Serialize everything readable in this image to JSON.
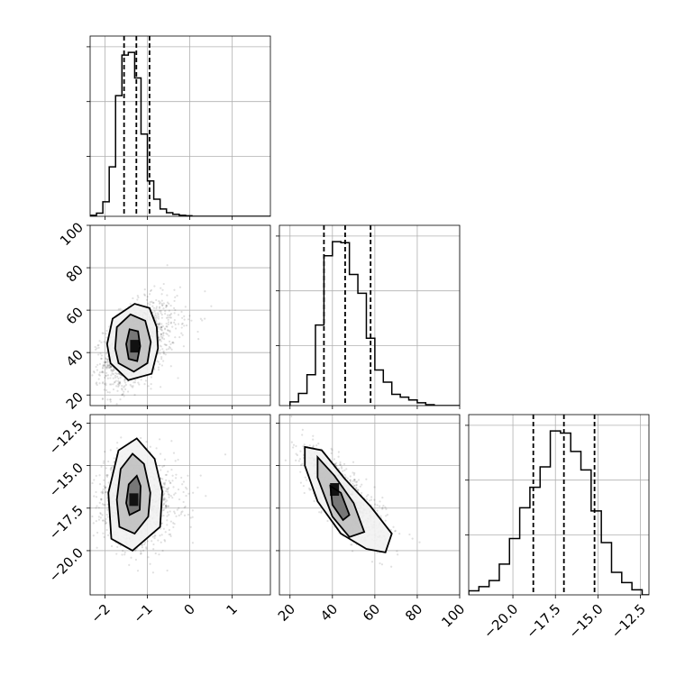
{
  "chart_data": {
    "type": "corner",
    "parameters": [
      {
        "range": [
          -2.35,
          1.9
        ],
        "ticks": [
          -2,
          -1,
          0,
          1
        ],
        "tick_labels": [
          "−2",
          "−1",
          "0",
          "1"
        ],
        "quantiles": [
          -1.55,
          -1.26,
          -0.95
        ],
        "histogram": {
          "bin_edges": [
            -2.35,
            -2.2,
            -2.05,
            -1.9,
            -1.75,
            -1.6,
            -1.45,
            -1.3,
            -1.15,
            -1.0,
            -0.85,
            -0.7,
            -0.55,
            -0.4,
            -0.25,
            -0.1,
            0.05,
            0.2
          ],
          "counts": [
            2,
            6,
            28,
            95,
            232,
            310,
            315,
            266,
            158,
            68,
            33,
            14,
            7,
            4,
            2,
            1,
            0
          ]
        }
      },
      {
        "range": [
          15,
          100
        ],
        "ticks": [
          20,
          40,
          60,
          80,
          100
        ],
        "tick_labels": [
          "20",
          "40",
          "60",
          "80",
          "100"
        ],
        "quantiles": [
          36,
          46,
          58
        ],
        "histogram": {
          "bin_edges": [
            20,
            24,
            28,
            32,
            36,
            40,
            44,
            48,
            52,
            56,
            60,
            64,
            68,
            72,
            76,
            80,
            84,
            88
          ],
          "counts": [
            4,
            13,
            33,
            86,
            160,
            175,
            174,
            140,
            120,
            72,
            38,
            25,
            12,
            9,
            6,
            3,
            1
          ]
        }
      },
      {
        "range": [
          -22.6,
          -12.0
        ],
        "ticks": [
          -20.0,
          -17.5,
          -15.0,
          -12.5
        ],
        "tick_labels": [
          "−20.0",
          "−17.5",
          "−15.0",
          "−12.5"
        ],
        "quantiles": [
          -18.8,
          -17.0,
          -15.2
        ],
        "histogram": {
          "bin_edges": [
            -22.6,
            -22.0,
            -21.4,
            -20.8,
            -20.2,
            -19.6,
            -19.0,
            -18.4,
            -17.8,
            -17.2,
            -16.6,
            -16.0,
            -15.4,
            -14.8,
            -14.2,
            -13.6,
            -13.0,
            -12.4
          ],
          "counts": [
            4,
            8,
            14,
            30,
            55,
            85,
            105,
            125,
            160,
            158,
            140,
            122,
            82,
            51,
            22,
            12,
            5
          ]
        }
      }
    ],
    "pairs": [
      {
        "x_param": 0,
        "y_param": 1,
        "center": [
          -1.3,
          44
        ],
        "contours": [
          [
            [
              -1.44,
              37
            ],
            [
              -1.24,
              36
            ],
            [
              -1.17,
              43
            ],
            [
              -1.22,
              50
            ],
            [
              -1.42,
              51
            ],
            [
              -1.5,
              44
            ]
          ],
          [
            [
              -1.68,
              35
            ],
            [
              -1.32,
              31
            ],
            [
              -1.0,
              35
            ],
            [
              -0.92,
              45
            ],
            [
              -1.05,
              55
            ],
            [
              -1.4,
              58
            ],
            [
              -1.72,
              52
            ],
            [
              -1.76,
              42
            ]
          ],
          [
            [
              -1.87,
              35
            ],
            [
              -1.45,
              27
            ],
            [
              -0.9,
              30
            ],
            [
              -0.75,
              42
            ],
            [
              -0.78,
              52
            ],
            [
              -0.95,
              61
            ],
            [
              -1.3,
              63
            ],
            [
              -1.82,
              56
            ],
            [
              -1.95,
              44
            ]
          ]
        ],
        "density_peak": [
          -1.3,
          43
        ],
        "correlation": 0.45
      },
      {
        "x_param": 0,
        "y_param": 2,
        "center": [
          -1.3,
          -17.0
        ],
        "contours": [
          [
            [
              -1.42,
              -17.9
            ],
            [
              -1.18,
              -17.6
            ],
            [
              -1.16,
              -16.2
            ],
            [
              -1.25,
              -15.6
            ],
            [
              -1.44,
              -16.1
            ],
            [
              -1.5,
              -17.2
            ]
          ],
          [
            [
              -1.66,
              -18.6
            ],
            [
              -1.3,
              -19.0
            ],
            [
              -0.98,
              -18.0
            ],
            [
              -0.93,
              -16.6
            ],
            [
              -1.08,
              -14.9
            ],
            [
              -1.35,
              -14.3
            ],
            [
              -1.63,
              -15.2
            ],
            [
              -1.72,
              -17.0
            ]
          ],
          [
            [
              -1.85,
              -19.3
            ],
            [
              -1.35,
              -20.0
            ],
            [
              -0.7,
              -18.6
            ],
            [
              -0.65,
              -16.5
            ],
            [
              -0.83,
              -14.6
            ],
            [
              -1.25,
              -13.4
            ],
            [
              -1.68,
              -14.1
            ],
            [
              -1.92,
              -16.6
            ]
          ]
        ],
        "density_peak": [
          -1.32,
          -17.0
        ],
        "correlation": 0.0
      },
      {
        "x_param": 1,
        "y_param": 2,
        "center": [
          44,
          -16.8
        ],
        "contours": [
          [
            [
              39,
              -16.2
            ],
            [
              44,
              -16.6
            ],
            [
              48,
              -17.9
            ],
            [
              45,
              -18.2
            ],
            [
              40,
              -17.3
            ]
          ],
          [
            [
              33,
              -14.5
            ],
            [
              41,
              -15.6
            ],
            [
              50,
              -17.2
            ],
            [
              55,
              -18.9
            ],
            [
              48,
              -19.2
            ],
            [
              40,
              -18.0
            ],
            [
              33,
              -15.7
            ]
          ],
          [
            [
              27,
              -13.9
            ],
            [
              35,
              -14.1
            ],
            [
              46,
              -15.8
            ],
            [
              58,
              -17.4
            ],
            [
              68,
              -19.0
            ],
            [
              65,
              -20.1
            ],
            [
              56,
              -19.9
            ],
            [
              44,
              -19.0
            ],
            [
              33,
              -17.1
            ],
            [
              27,
              -15.0
            ]
          ]
        ],
        "density_peak": [
          41,
          -16.4
        ],
        "correlation": -0.75
      }
    ],
    "grid": true
  }
}
